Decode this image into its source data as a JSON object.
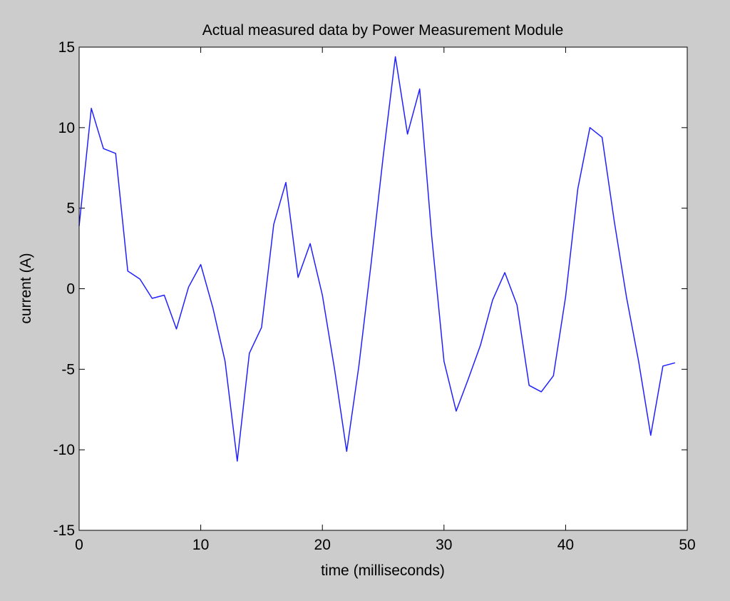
{
  "colors": {
    "figure_background": "#cccccc",
    "plot_background": "#ffffff",
    "axis": "#000000",
    "series_line": "#2020ff"
  },
  "chart_data": {
    "type": "line",
    "title": "Actual measured data by Power Measurement Module",
    "xlabel": "time (milliseconds)",
    "ylabel": "current (A)",
    "xlim": [
      0,
      50
    ],
    "ylim": [
      -15,
      15
    ],
    "xticks": [
      0,
      10,
      20,
      30,
      40,
      50
    ],
    "yticks": [
      -15,
      -10,
      -5,
      0,
      5,
      10,
      15
    ],
    "x_tick_labels": [
      "0",
      "10",
      "20",
      "30",
      "40",
      "50"
    ],
    "y_tick_labels": [
      "-15",
      "-10",
      "-5",
      "0",
      "5",
      "10",
      "15"
    ],
    "grid": false,
    "legend": "none",
    "series": [
      {
        "color": "#2020ff",
        "x": [
          0,
          1,
          2,
          3,
          4,
          5,
          6,
          7,
          8,
          9,
          10,
          11,
          12,
          13,
          14,
          15,
          16,
          17,
          18,
          19,
          20,
          21,
          22,
          23,
          24,
          25,
          26,
          27,
          28,
          29,
          30,
          31,
          32,
          33,
          34,
          35,
          36,
          37,
          38,
          39,
          40,
          41,
          42,
          43,
          44,
          45,
          46,
          47,
          48,
          49
        ],
        "y": [
          3.9,
          11.2,
          8.7,
          8.4,
          1.1,
          0.6,
          -0.6,
          -0.4,
          -2.5,
          0.1,
          1.5,
          -1.2,
          -4.5,
          -10.7,
          -4.0,
          -2.4,
          4.0,
          6.6,
          0.7,
          2.8,
          -0.4,
          -5.0,
          -10.1,
          -4.8,
          1.5,
          8.2,
          14.4,
          9.6,
          12.4,
          3.2,
          -4.5,
          -7.6,
          -5.6,
          -3.5,
          -0.7,
          1.0,
          -1.0,
          -6.0,
          -6.4,
          -5.4,
          -0.5,
          6.2,
          10.0,
          9.4,
          4.2,
          -0.5,
          -4.5,
          -9.1,
          -4.8,
          -4.6
        ]
      }
    ]
  }
}
